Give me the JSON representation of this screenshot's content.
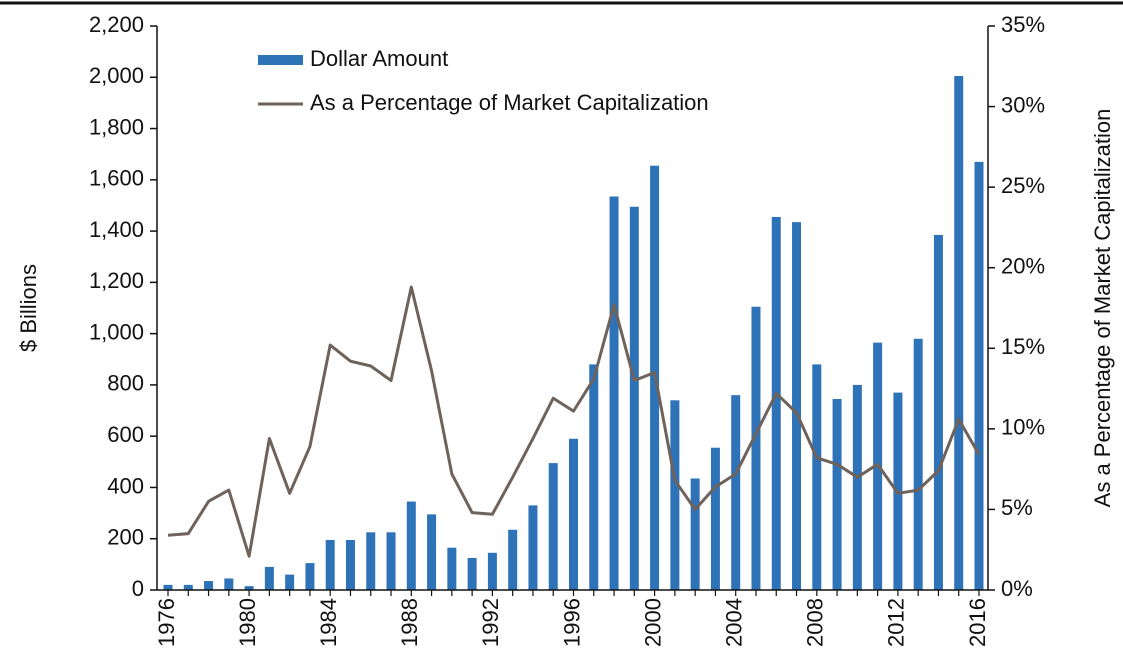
{
  "chart_data": {
    "type": "bar-line",
    "ylabel": "$ Billions",
    "y2label": "As a Percentage of Market Capitalization",
    "categories": [
      "1976",
      null,
      null,
      null,
      "1980",
      null,
      null,
      null,
      "1984",
      null,
      null,
      null,
      "1988",
      null,
      null,
      null,
      "1992",
      null,
      null,
      null,
      "1996",
      null,
      null,
      null,
      "2000",
      null,
      null,
      null,
      "2004",
      null,
      null,
      null,
      "2008",
      null,
      null,
      null,
      "2012",
      null,
      null,
      null,
      "2016"
    ],
    "series": [
      {
        "name": "Dollar Amount",
        "color": "#2e72b8",
        "kind": "bar",
        "values": [
          20,
          20,
          35,
          45,
          15,
          90,
          60,
          105,
          195,
          195,
          225,
          225,
          345,
          295,
          165,
          125,
          145,
          235,
          330,
          495,
          590,
          880,
          1535,
          1495,
          1655,
          740,
          435,
          555,
          760,
          1105,
          1455,
          1435,
          880,
          745,
          800,
          965,
          770,
          980,
          1385,
          2005,
          1670
        ]
      },
      {
        "name": "As a Percentage of Market Capitalization",
        "color": "#6e625a",
        "kind": "line",
        "axis": "y2",
        "values": [
          3.4,
          3.5,
          5.5,
          6.2,
          2.1,
          9.4,
          6.0,
          8.9,
          15.2,
          14.2,
          13.9,
          13.0,
          18.8,
          13.6,
          7.2,
          4.8,
          4.7,
          7.0,
          9.4,
          11.9,
          11.1,
          13.1,
          17.7,
          13.0,
          13.5,
          6.8,
          5.0,
          6.4,
          7.2,
          9.7,
          12.2,
          11.0,
          8.2,
          7.8,
          7.0,
          7.8,
          6.0,
          6.2,
          7.4,
          10.6,
          8.4
        ]
      }
    ],
    "ylim": [
      0,
      2200
    ],
    "yticks": [
      0,
      200,
      400,
      600,
      800,
      {
        "value": 1000,
        "label": "1,000"
      },
      {
        "value": 1200,
        "label": "1,200"
      },
      {
        "value": 1400,
        "label": "1,400"
      },
      {
        "value": 1600,
        "label": "1,600"
      },
      {
        "value": 1800,
        "label": "1,800"
      },
      {
        "value": 2000,
        "label": "2,000"
      },
      {
        "value": 2200,
        "label": "2,200"
      }
    ],
    "y2lim": [
      0,
      35
    ],
    "y2ticks": [
      {
        "value": 0,
        "label": "0%"
      },
      {
        "value": 5,
        "label": "5%"
      },
      {
        "value": 10,
        "label": "10%"
      },
      {
        "value": 15,
        "label": "15%"
      },
      {
        "value": 20,
        "label": "20%"
      },
      {
        "value": 25,
        "label": "25%"
      },
      {
        "value": 30,
        "label": "30%"
      },
      {
        "value": 35,
        "label": "35%"
      }
    ],
    "grid": false
  }
}
